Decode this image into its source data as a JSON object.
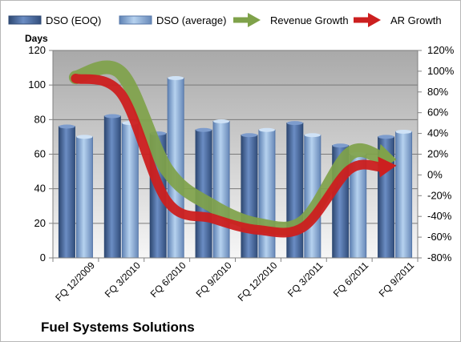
{
  "chart_data": {
    "type": "bar",
    "company": "Fuel Systems Solutions",
    "categories": [
      "FQ 12/2009",
      "FQ 3/2010",
      "FQ 6/2010",
      "FQ 9/2010",
      "FQ 12/2010",
      "FQ 3/2011",
      "FQ 6/2011",
      "FQ 9/2011"
    ],
    "ylabel": "Days",
    "ylim": [
      0,
      120
    ],
    "yticks": [
      "0",
      "20",
      "40",
      "60",
      "80",
      "100",
      "120"
    ],
    "y2lim": [
      -80,
      120
    ],
    "y2ticks": [
      "-80%",
      "-60%",
      "-40%",
      "-20%",
      "0%",
      "20%",
      "40%",
      "60%",
      "80%",
      "100%",
      "120%"
    ],
    "grid": "horizontal",
    "legend_position": "top",
    "series": [
      {
        "name": "DSO (EOQ)",
        "type": "bar",
        "axis": "left",
        "color": "#4f6fa3",
        "values": [
          76,
          82,
          72,
          74,
          71,
          78,
          65,
          70
        ]
      },
      {
        "name": "DSO (average)",
        "type": "bar",
        "axis": "left",
        "color": "#8fb4dd",
        "values": [
          70,
          78,
          104,
          79,
          74,
          71,
          60,
          73
        ]
      },
      {
        "name": "Revenue Growth",
        "type": "line",
        "axis": "right",
        "unit": "%",
        "color": "#7fa24a",
        "values": [
          94,
          98,
          5,
          -30,
          -48,
          -45,
          20,
          15
        ]
      },
      {
        "name": "AR Growth",
        "type": "line",
        "axis": "right",
        "unit": "%",
        "color": "#cc1f1f",
        "values": [
          93,
          78,
          -25,
          -42,
          -53,
          -50,
          5,
          9
        ]
      }
    ]
  }
}
